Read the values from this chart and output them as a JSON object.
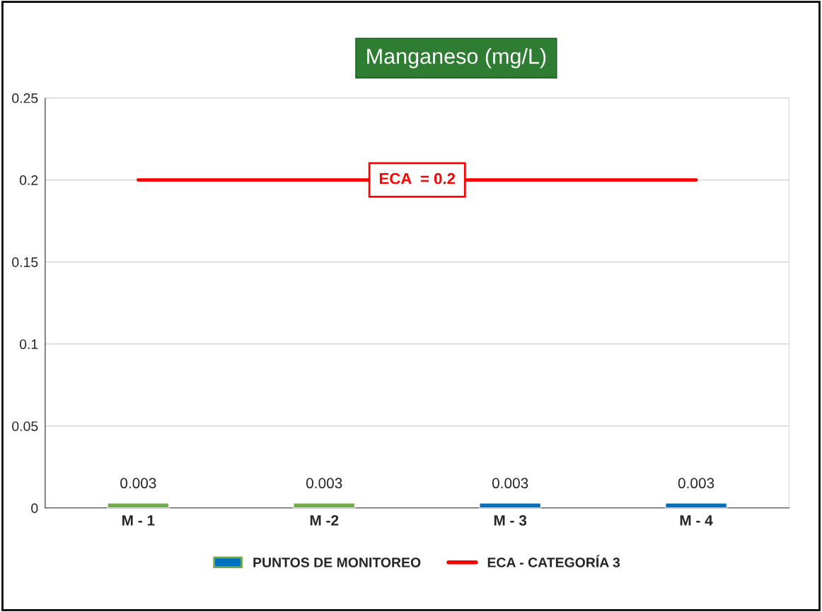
{
  "chart_data": {
    "type": "bar",
    "title": "Manganeso (mg/L)",
    "categories": [
      "M - 1",
      "M -2",
      "M - 3",
      "M - 4"
    ],
    "series": [
      {
        "name": "PUNTOS DE MONITOREO",
        "colors": [
          "#70ad47",
          "#70ad47",
          "#0070c0",
          "#0070c0"
        ],
        "color": "#0070c0",
        "values": [
          0.003,
          0.003,
          0.003,
          0.003
        ],
        "value_labels": [
          "0.003",
          "0.003",
          "0.003",
          "0.003"
        ]
      },
      {
        "name": "ECA - CATEGORÍA 3",
        "type": "line",
        "color": "#ff0000",
        "values": [
          0.2,
          0.2,
          0.2,
          0.2
        ]
      }
    ],
    "ylim": [
      0,
      0.25
    ],
    "yticks": [
      0,
      0.05,
      0.1,
      0.15,
      0.2,
      0.25
    ],
    "annotations": [
      {
        "text": "ECA  = 0.2",
        "y": 0.2
      }
    ],
    "grid": "y",
    "legend": "bottom"
  }
}
